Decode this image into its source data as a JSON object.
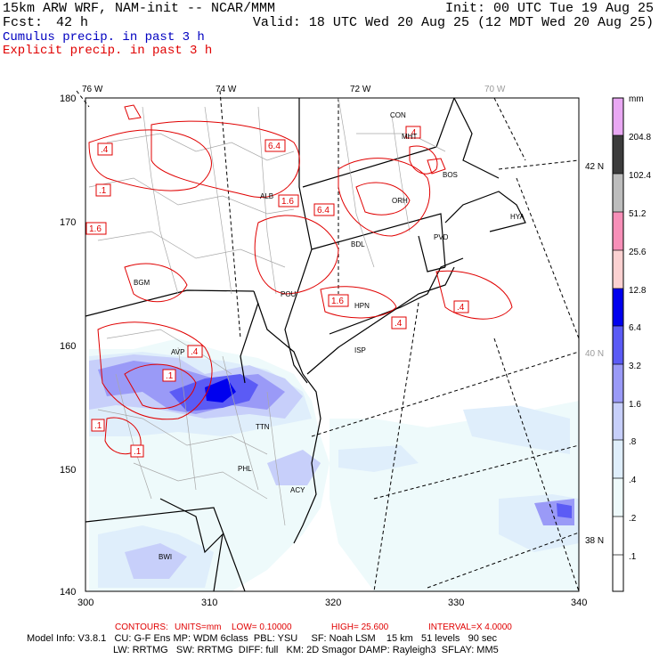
{
  "header": {
    "model_title": "15km ARW WRF, NAM-init -- NCAR/MMM",
    "init": "Init: 00 UTC Tue 19 Aug 25",
    "fcst_label": "Fcst:",
    "fcst_value": "42 h",
    "valid": "Valid: 18 UTC Wed 20 Aug 25 (12 MDT Wed 20 Aug 25)",
    "cumulus_label": "Cumulus precip. in past 3 h",
    "explicit_label": "Explicit precip. in past 3 h"
  },
  "map": {
    "lon_labels": [
      "76 W",
      "74 W",
      "72 W",
      "70 W"
    ],
    "lat_labels": [
      "42 N",
      "40 N",
      "38 N"
    ],
    "x_ticks": [
      "300",
      "310",
      "320",
      "330",
      "340"
    ],
    "y_ticks": [
      "180",
      "170",
      "160",
      "150",
      "140"
    ],
    "stations": [
      "CON",
      "MHT",
      "BOS",
      "HYA",
      "ORH",
      "PVD",
      "BDL",
      "ALB",
      "BGM",
      "POU",
      "HPN",
      "ISP",
      "AVP",
      "TTN",
      "PHL",
      "ACY",
      "BWI"
    ],
    "contour_labels": [
      "6.4",
      "1.6",
      "6.4",
      ".4",
      ".1",
      "1.6",
      "1.6",
      ".4",
      ".4",
      ".1",
      ".1",
      ".1",
      ".4",
      ".4"
    ]
  },
  "colorbar": {
    "unit": "mm",
    "levels": [
      "204.8",
      "102.4",
      "51.2",
      "25.6",
      "12.8",
      "6.4",
      "3.2",
      "1.6",
      ".8",
      ".4",
      ".2",
      ".1"
    ],
    "colors": [
      "#e9a8f3",
      "#3c3c3c",
      "#bdbdbd",
      "#f78fb8",
      "#fbd1d1",
      "#ffffff",
      "#0000ee",
      "#5b5bf5",
      "#9a9af7",
      "#c7cffa",
      "#dfeefb",
      "#eefafb",
      "#ffffff"
    ]
  },
  "footer": {
    "contours_label": "CONTOURS:",
    "units": "UNITS=mm",
    "low": "LOW= 0.10000",
    "high": "HIGH= 25.600",
    "interval": "INTERVAL=X 4.0000",
    "line1": "Model Info: V3.8.1   CU: G-F Ens MP: WDM 6class  PBL: YSU     SF: Noah LSM    15 km   51 levels   90 sec",
    "line2": "LW: RRTMG   SW: RRTMG  DIFF: full   KM: 2D Smagor DAMP: Rayleigh3  SFLAY: MM5"
  }
}
